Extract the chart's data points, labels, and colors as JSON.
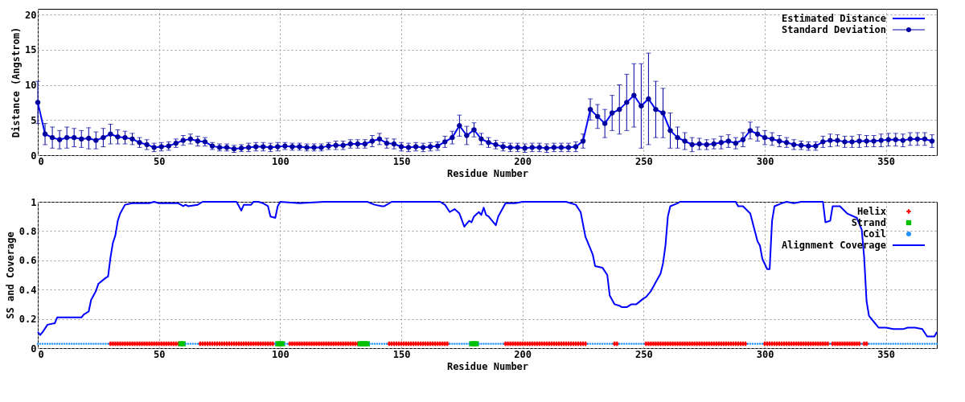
{
  "chart_data": [
    {
      "type": "line",
      "xlabel": "Residue Number",
      "ylabel": "Distance (Angstrom)",
      "xlim": [
        0,
        371
      ],
      "xticks": [
        0,
        50,
        100,
        150,
        200,
        250,
        300,
        350
      ],
      "ylim": [
        0,
        20.8
      ],
      "yticks": [
        0,
        5,
        10,
        15,
        20
      ],
      "grid": true,
      "legend": "top right",
      "x": [
        0,
        3,
        6,
        9,
        12,
        15,
        18,
        21,
        24,
        27,
        30,
        33,
        36,
        39,
        42,
        45,
        48,
        51,
        54,
        57,
        60,
        63,
        66,
        69,
        72,
        75,
        78,
        81,
        84,
        87,
        90,
        93,
        96,
        99,
        102,
        105,
        108,
        111,
        114,
        117,
        120,
        123,
        126,
        129,
        132,
        135,
        138,
        141,
        144,
        147,
        150,
        153,
        156,
        159,
        162,
        165,
        168,
        171,
        174,
        177,
        180,
        183,
        186,
        189,
        192,
        195,
        198,
        201,
        204,
        207,
        210,
        213,
        216,
        219,
        222,
        225,
        228,
        231,
        234,
        237,
        240,
        243,
        246,
        249,
        252,
        255,
        258,
        261,
        264,
        267,
        270,
        273,
        276,
        279,
        282,
        285,
        288,
        291,
        294,
        297,
        300,
        303,
        306,
        309,
        312,
        315,
        318,
        321,
        324,
        327,
        330,
        333,
        336,
        339,
        342,
        345,
        348,
        351,
        354,
        357,
        360,
        363,
        366,
        369
      ],
      "series": [
        {
          "name": "Estimated Distance",
          "type": "line",
          "color": "#0000ff",
          "values": [
            7.5,
            3.0,
            2.5,
            2.2,
            2.5,
            2.5,
            2.3,
            2.4,
            2.1,
            2.5,
            3.0,
            2.6,
            2.5,
            2.3,
            1.8,
            1.5,
            1.1,
            1.2,
            1.3,
            1.7,
            2.1,
            2.3,
            2.0,
            1.9,
            1.3,
            1.1,
            1.1,
            0.9,
            1.0,
            1.1,
            1.2,
            1.2,
            1.1,
            1.2,
            1.3,
            1.2,
            1.2,
            1.1,
            1.1,
            1.1,
            1.3,
            1.4,
            1.4,
            1.6,
            1.6,
            1.6,
            2.0,
            2.3,
            1.7,
            1.6,
            1.2,
            1.1,
            1.2,
            1.1,
            1.2,
            1.3,
            1.9,
            2.5,
            4.2,
            2.8,
            3.6,
            2.3,
            1.8,
            1.5,
            1.2,
            1.1,
            1.1,
            1.0,
            1.1,
            1.1,
            1.0,
            1.1,
            1.1,
            1.1,
            1.2,
            2.0,
            6.5,
            5.5,
            4.5,
            6.0,
            6.5,
            7.5,
            8.5,
            7.0,
            8.0,
            6.5,
            6.0,
            3.5,
            2.5,
            2.0,
            1.5,
            1.6,
            1.5,
            1.6,
            1.8,
            2.0,
            1.7,
            2.2,
            3.5,
            3.0,
            2.5,
            2.3,
            2.0,
            1.8,
            1.5,
            1.4,
            1.3,
            1.3,
            1.9,
            2.1,
            2.1,
            1.9,
            1.9,
            2.0,
            2.0,
            2.0,
            2.1,
            2.2,
            2.2,
            2.1,
            2.3,
            2.3,
            2.3,
            2.0
          ]
        },
        {
          "name": "Standard Deviation",
          "type": "scatter",
          "marker": "circle",
          "color": "#0000a0",
          "values": [
            7.5,
            3.0,
            2.5,
            2.2,
            2.5,
            2.5,
            2.3,
            2.4,
            2.1,
            2.5,
            3.0,
            2.6,
            2.5,
            2.3,
            1.8,
            1.5,
            1.1,
            1.2,
            1.3,
            1.7,
            2.1,
            2.3,
            2.0,
            1.9,
            1.3,
            1.1,
            1.1,
            0.9,
            1.0,
            1.1,
            1.2,
            1.2,
            1.1,
            1.2,
            1.3,
            1.2,
            1.2,
            1.1,
            1.1,
            1.1,
            1.3,
            1.4,
            1.4,
            1.6,
            1.6,
            1.6,
            2.0,
            2.3,
            1.7,
            1.6,
            1.2,
            1.1,
            1.2,
            1.1,
            1.2,
            1.3,
            1.9,
            2.5,
            4.2,
            2.8,
            3.6,
            2.3,
            1.8,
            1.5,
            1.2,
            1.1,
            1.1,
            1.0,
            1.1,
            1.1,
            1.0,
            1.1,
            1.1,
            1.1,
            1.2,
            2.0,
            6.5,
            5.5,
            4.5,
            6.0,
            6.5,
            7.5,
            8.5,
            7.0,
            8.0,
            6.5,
            6.0,
            3.5,
            2.5,
            2.0,
            1.5,
            1.6,
            1.5,
            1.6,
            1.8,
            2.0,
            1.7,
            2.2,
            3.5,
            3.0,
            2.5,
            2.3,
            2.0,
            1.8,
            1.5,
            1.4,
            1.3,
            1.3,
            1.9,
            2.1,
            2.1,
            1.9,
            1.9,
            2.0,
            2.0,
            2.0,
            2.1,
            2.2,
            2.2,
            2.1,
            2.3,
            2.3,
            2.3,
            2.0
          ],
          "errors": [
            3,
            1.5,
            1.5,
            1.3,
            1.5,
            1.3,
            1.2,
            1.5,
            1.2,
            1.3,
            1.4,
            1.0,
            0.9,
            0.8,
            0.7,
            0.7,
            0.6,
            0.6,
            0.6,
            0.6,
            0.7,
            0.7,
            0.7,
            0.6,
            0.5,
            0.5,
            0.5,
            0.5,
            0.5,
            0.6,
            0.6,
            0.6,
            0.6,
            0.6,
            0.5,
            0.5,
            0.5,
            0.5,
            0.5,
            0.5,
            0.5,
            0.6,
            0.6,
            0.6,
            0.6,
            0.6,
            0.8,
            0.8,
            0.7,
            0.7,
            0.6,
            0.6,
            0.6,
            0.6,
            0.6,
            0.6,
            0.8,
            0.9,
            1.5,
            1.3,
            1.0,
            0.8,
            0.7,
            0.6,
            0.6,
            0.6,
            0.6,
            0.6,
            0.6,
            0.6,
            0.6,
            0.6,
            0.6,
            0.6,
            0.7,
            1.0,
            1.5,
            1.7,
            2.0,
            2.5,
            3.5,
            4.0,
            4.5,
            6.0,
            6.5,
            4.0,
            3.5,
            2.5,
            1.5,
            1.2,
            1.0,
            0.8,
            0.7,
            0.7,
            0.9,
            0.9,
            0.8,
            1.0,
            1.2,
            1.0,
            1.0,
            0.9,
            0.8,
            0.7,
            0.7,
            0.6,
            0.6,
            0.6,
            0.8,
            0.9,
            0.8,
            0.8,
            0.8,
            0.9,
            0.8,
            0.8,
            0.9,
            0.9,
            0.9,
            0.9,
            0.9,
            0.9,
            0.9,
            0.9
          ]
        }
      ]
    },
    {
      "type": "line",
      "xlabel": "Residue Number",
      "ylabel": "SS and Coverage",
      "xlim": [
        0,
        371
      ],
      "xticks": [
        0,
        50,
        100,
        150,
        200,
        250,
        300,
        350
      ],
      "ylim": [
        0,
        1
      ],
      "yticks": [
        0,
        0.2,
        0.4,
        0.6,
        0.8,
        1
      ],
      "grid": true,
      "legend": "top right",
      "series": [
        {
          "name": "Helix",
          "type": "scatter",
          "marker": "cross",
          "color": "#ff0000",
          "x": [
            30,
            31,
            32,
            33,
            34,
            35,
            36,
            37,
            38,
            39,
            40,
            41,
            42,
            43,
            44,
            45,
            46,
            47,
            48,
            49,
            50,
            51,
            52,
            53,
            54,
            55,
            56,
            57,
            58,
            67,
            68,
            69,
            70,
            71,
            72,
            73,
            74,
            75,
            76,
            77,
            78,
            79,
            80,
            81,
            82,
            83,
            84,
            85,
            86,
            87,
            88,
            89,
            90,
            91,
            92,
            93,
            94,
            95,
            96,
            97,
            104,
            105,
            106,
            107,
            108,
            109,
            110,
            111,
            112,
            113,
            114,
            115,
            116,
            117,
            118,
            119,
            120,
            121,
            122,
            123,
            124,
            125,
            126,
            127,
            128,
            129,
            130,
            131,
            132,
            145,
            146,
            147,
            148,
            149,
            150,
            151,
            152,
            153,
            154,
            155,
            156,
            157,
            158,
            159,
            160,
            161,
            162,
            163,
            164,
            165,
            166,
            167,
            168,
            169,
            193,
            194,
            195,
            196,
            197,
            198,
            199,
            200,
            201,
            202,
            203,
            204,
            205,
            206,
            207,
            208,
            209,
            210,
            211,
            212,
            213,
            214,
            215,
            216,
            217,
            218,
            219,
            220,
            221,
            222,
            223,
            224,
            225,
            226,
            238,
            239,
            251,
            252,
            253,
            254,
            255,
            256,
            257,
            258,
            259,
            260,
            261,
            262,
            263,
            264,
            265,
            266,
            267,
            268,
            269,
            270,
            271,
            272,
            273,
            274,
            275,
            276,
            277,
            278,
            279,
            280,
            281,
            282,
            283,
            284,
            285,
            286,
            287,
            288,
            289,
            290,
            291,
            292,
            300,
            301,
            302,
            303,
            304,
            305,
            306,
            307,
            308,
            309,
            310,
            311,
            312,
            313,
            314,
            315,
            316,
            317,
            318,
            319,
            320,
            321,
            322,
            323,
            324,
            325,
            326,
            328,
            329,
            330,
            331,
            332,
            333,
            334,
            335,
            336,
            337,
            338,
            339,
            341,
            342
          ],
          "values": [
            0.03,
            0.03,
            0.03,
            0.03,
            0.03,
            0.03,
            0.03,
            0.03,
            0.03,
            0.03,
            0.03,
            0.03,
            0.03,
            0.03,
            0.03,
            0.03,
            0.03,
            0.03,
            0.03,
            0.03,
            0.03,
            0.03,
            0.03,
            0.03,
            0.03,
            0.03,
            0.03,
            0.03,
            0.03,
            0.03,
            0.03,
            0.03,
            0.03,
            0.03,
            0.03,
            0.03,
            0.03,
            0.03,
            0.03,
            0.03,
            0.03,
            0.03,
            0.03,
            0.03,
            0.03,
            0.03,
            0.03,
            0.03,
            0.03,
            0.03,
            0.03,
            0.03,
            0.03,
            0.03,
            0.03,
            0.03,
            0.03,
            0.03,
            0.03,
            0.03,
            0.03,
            0.03,
            0.03,
            0.03,
            0.03,
            0.03,
            0.03,
            0.03,
            0.03,
            0.03,
            0.03,
            0.03,
            0.03,
            0.03,
            0.03,
            0.03,
            0.03,
            0.03,
            0.03,
            0.03,
            0.03,
            0.03,
            0.03,
            0.03,
            0.03,
            0.03,
            0.03,
            0.03,
            0.03,
            0.03,
            0.03,
            0.03,
            0.03,
            0.03,
            0.03,
            0.03,
            0.03,
            0.03,
            0.03,
            0.03,
            0.03,
            0.03,
            0.03,
            0.03,
            0.03,
            0.03,
            0.03,
            0.03,
            0.03,
            0.03,
            0.03,
            0.03,
            0.03,
            0.03,
            0.03,
            0.03,
            0.03,
            0.03,
            0.03,
            0.03,
            0.03,
            0.03,
            0.03,
            0.03,
            0.03,
            0.03,
            0.03,
            0.03,
            0.03,
            0.03,
            0.03,
            0.03,
            0.03,
            0.03,
            0.03,
            0.03,
            0.03,
            0.03,
            0.03,
            0.03,
            0.03,
            0.03,
            0.03,
            0.03,
            0.03,
            0.03,
            0.03,
            0.03,
            0.03,
            0.03,
            0.03,
            0.03,
            0.03,
            0.03,
            0.03,
            0.03,
            0.03,
            0.03,
            0.03,
            0.03,
            0.03,
            0.03,
            0.03,
            0.03,
            0.03,
            0.03,
            0.03,
            0.03,
            0.03,
            0.03,
            0.03,
            0.03,
            0.03,
            0.03,
            0.03,
            0.03,
            0.03,
            0.03,
            0.03,
            0.03,
            0.03,
            0.03,
            0.03,
            0.03,
            0.03,
            0.03,
            0.03,
            0.03,
            0.03,
            0.03,
            0.03,
            0.03,
            0.03,
            0.03,
            0.03,
            0.03,
            0.03,
            0.03,
            0.03,
            0.03,
            0.03,
            0.03,
            0.03,
            0.03,
            0.03,
            0.03,
            0.03,
            0.03,
            0.03,
            0.03,
            0.03,
            0.03,
            0.03,
            0.03,
            0.03,
            0.03,
            0.03,
            0.03,
            0.03,
            0.03,
            0.03,
            0.03,
            0.03,
            0.03,
            0.03,
            0.03,
            0.03,
            0.03,
            0.03,
            0.03,
            0.03,
            0.03,
            0.03
          ]
        },
        {
          "name": "Strand",
          "type": "scatter",
          "marker": "square",
          "color": "#00c000",
          "x": [
            59,
            60,
            99,
            100,
            101,
            133,
            134,
            135,
            136,
            179,
            180,
            181
          ],
          "values": [
            0.03,
            0.03,
            0.03,
            0.03,
            0.03,
            0.03,
            0.03,
            0.03,
            0.03,
            0.03,
            0.03,
            0.03
          ]
        },
        {
          "name": "Coil",
          "type": "scatter",
          "marker": "circle",
          "color": "#1e90ff",
          "x": [
            0,
            1,
            2,
            3,
            4,
            5,
            6,
            7,
            8,
            9,
            10,
            11,
            12,
            13,
            14,
            15,
            16,
            17,
            18,
            19,
            20,
            21,
            22,
            23,
            24,
            25,
            26,
            27,
            28,
            29,
            61,
            62,
            63,
            64,
            65,
            66,
            98,
            102,
            103,
            137,
            138,
            139,
            140,
            141,
            142,
            143,
            144,
            170,
            171,
            172,
            173,
            174,
            175,
            176,
            177,
            178,
            182,
            183,
            184,
            185,
            186,
            187,
            188,
            189,
            190,
            191,
            192,
            227,
            228,
            229,
            230,
            231,
            232,
            233,
            234,
            235,
            236,
            237,
            240,
            241,
            242,
            243,
            244,
            245,
            246,
            247,
            248,
            249,
            250,
            293,
            294,
            295,
            296,
            297,
            298,
            299,
            327,
            340,
            343,
            344,
            345,
            346,
            347,
            348,
            349,
            350,
            351,
            352,
            353,
            354,
            355,
            356,
            357,
            358,
            359,
            360,
            361,
            362,
            363,
            364,
            365,
            366,
            367,
            368,
            369,
            370,
            371
          ],
          "values": [
            0.03,
            0.03,
            0.03,
            0.03,
            0.03,
            0.03,
            0.03,
            0.03,
            0.03,
            0.03,
            0.03,
            0.03,
            0.03,
            0.03,
            0.03,
            0.03,
            0.03,
            0.03,
            0.03,
            0.03,
            0.03,
            0.03,
            0.03,
            0.03,
            0.03,
            0.03,
            0.03,
            0.03,
            0.03,
            0.03,
            0.03,
            0.03,
            0.03,
            0.03,
            0.03,
            0.03,
            0.03,
            0.03,
            0.03,
            0.03,
            0.03,
            0.03,
            0.03,
            0.03,
            0.03,
            0.03,
            0.03,
            0.03,
            0.03,
            0.03,
            0.03,
            0.03,
            0.03,
            0.03,
            0.03,
            0.03,
            0.03,
            0.03,
            0.03,
            0.03,
            0.03,
            0.03,
            0.03,
            0.03,
            0.03,
            0.03,
            0.03,
            0.03,
            0.03,
            0.03,
            0.03,
            0.03,
            0.03,
            0.03,
            0.03,
            0.03,
            0.03,
            0.03,
            0.03,
            0.03,
            0.03,
            0.03,
            0.03,
            0.03,
            0.03,
            0.03,
            0.03,
            0.03,
            0.03,
            0.03,
            0.03,
            0.03,
            0.03,
            0.03,
            0.03,
            0.03,
            0.03,
            0.03,
            0.03,
            0.03,
            0.03,
            0.03,
            0.03,
            0.03,
            0.03,
            0.03,
            0.03,
            0.03,
            0.03,
            0.03,
            0.03,
            0.03,
            0.03,
            0.03,
            0.03,
            0.03,
            0.03,
            0.03,
            0.03,
            0.03,
            0.03,
            0.03,
            0.03,
            0.03,
            0.03,
            0.03,
            0.03
          ]
        },
        {
          "name": "Alignment Coverage",
          "type": "line",
          "color": "#0000ff",
          "x": [
            0,
            1,
            2,
            4,
            7,
            8,
            11,
            13,
            18,
            19,
            21,
            22,
            24,
            25,
            28,
            29,
            30,
            31,
            32,
            33,
            34,
            36,
            39,
            46,
            48,
            50,
            58,
            60,
            61,
            62,
            66,
            68,
            82,
            84,
            85,
            88,
            89,
            91,
            93,
            95,
            96,
            98,
            99,
            100,
            108,
            118,
            136,
            139,
            142,
            143,
            146,
            166,
            168,
            170,
            172,
            174,
            176,
            178,
            179,
            180,
            182,
            183,
            184,
            185,
            186,
            189,
            190,
            193,
            197,
            200,
            218,
            222,
            224,
            226,
            228,
            229,
            230,
            233,
            235,
            236,
            238,
            240,
            241,
            243,
            245,
            247,
            250,
            251,
            253,
            255,
            257,
            258,
            259,
            260,
            261,
            264,
            265,
            288,
            289,
            291,
            294,
            297,
            298,
            299,
            301,
            302,
            303,
            304,
            307,
            309,
            312,
            315,
            324,
            325,
            327,
            328,
            331,
            334,
            338,
            340,
            341,
            342,
            343,
            345,
            347,
            350,
            353,
            357,
            359,
            362,
            365,
            367,
            370,
            371
          ],
          "values": [
            0.11,
            0.09,
            0.11,
            0.16,
            0.17,
            0.21,
            0.21,
            0.21,
            0.21,
            0.23,
            0.25,
            0.33,
            0.39,
            0.44,
            0.48,
            0.49,
            0.62,
            0.72,
            0.77,
            0.87,
            0.92,
            0.98,
            0.99,
            0.99,
            1.0,
            0.99,
            0.99,
            0.97,
            0.98,
            0.97,
            0.98,
            1.0,
            1.0,
            0.94,
            0.98,
            0.98,
            1.0,
            1.0,
            0.99,
            0.97,
            0.9,
            0.89,
            0.97,
            1.0,
            0.99,
            1.0,
            1.0,
            0.98,
            0.97,
            0.97,
            1.0,
            1.0,
            0.98,
            0.93,
            0.95,
            0.92,
            0.83,
            0.87,
            0.86,
            0.9,
            0.93,
            0.91,
            0.96,
            0.91,
            0.9,
            0.84,
            0.9,
            0.99,
            0.99,
            1.0,
            1.0,
            0.98,
            0.93,
            0.76,
            0.68,
            0.64,
            0.56,
            0.55,
            0.5,
            0.36,
            0.3,
            0.29,
            0.28,
            0.28,
            0.3,
            0.3,
            0.34,
            0.35,
            0.39,
            0.45,
            0.51,
            0.58,
            0.7,
            0.9,
            0.97,
            0.99,
            1.0,
            1.0,
            0.97,
            0.97,
            0.92,
            0.73,
            0.7,
            0.61,
            0.54,
            0.54,
            0.87,
            0.97,
            0.99,
            1.0,
            0.99,
            1.0,
            1.0,
            0.86,
            0.87,
            0.97,
            0.97,
            0.92,
            0.89,
            0.81,
            0.62,
            0.32,
            0.22,
            0.18,
            0.14,
            0.14,
            0.13,
            0.13,
            0.14,
            0.14,
            0.13,
            0.08,
            0.08,
            0.11
          ]
        }
      ]
    }
  ]
}
